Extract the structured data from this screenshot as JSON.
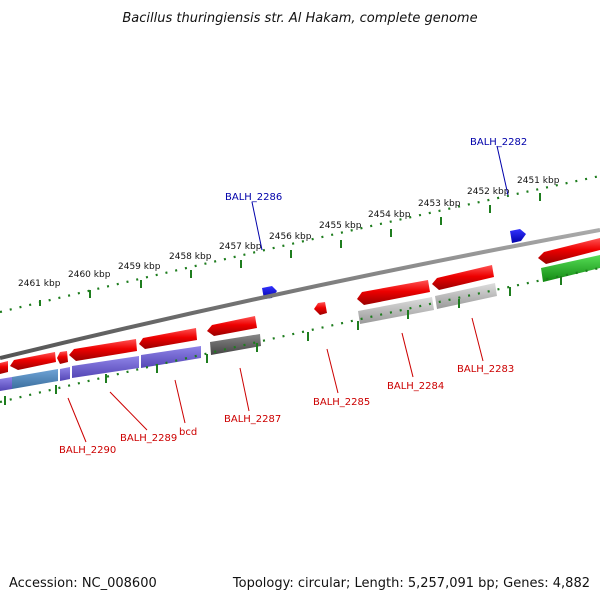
{
  "title": "Bacillus thuringiensis str. Al Hakam, complete genome",
  "footer": {
    "accession": "Accession: NC_008600",
    "summary": "Topology: circular; Length: 5,257,091 bp; Genes: 4,882"
  },
  "scale": {
    "unit": "kbp",
    "ticks": [
      "2461 kbp",
      "2460 kbp",
      "2459 kbp",
      "2458 kbp",
      "2457 kbp",
      "2456 kbp",
      "2455 kbp",
      "2454 kbp",
      "2453 kbp",
      "2452 kbp",
      "2451 kbp"
    ]
  },
  "genes": {
    "forward_strand": [
      "BALH_2286",
      "BALH_2282"
    ],
    "reverse_strand": [
      "BALH_2290",
      "BALH_2289",
      "bcd",
      "BALH_2287",
      "BALH_2285",
      "BALH_2284",
      "BALH_2283"
    ]
  },
  "colors": {
    "backbone": "#7a7a7a",
    "tick_green": "#1e7d1e",
    "gene_red": "#ee0000",
    "gene_blue": "#0000dd",
    "track_purple": "#6a5acd",
    "track_steelblue": "#4a7fb0",
    "track_gray": "#a9a9a9",
    "track_darkgray": "#555555",
    "track_green": "#22aa22",
    "label_red": "#cc0000",
    "label_blue": "#0000aa"
  }
}
